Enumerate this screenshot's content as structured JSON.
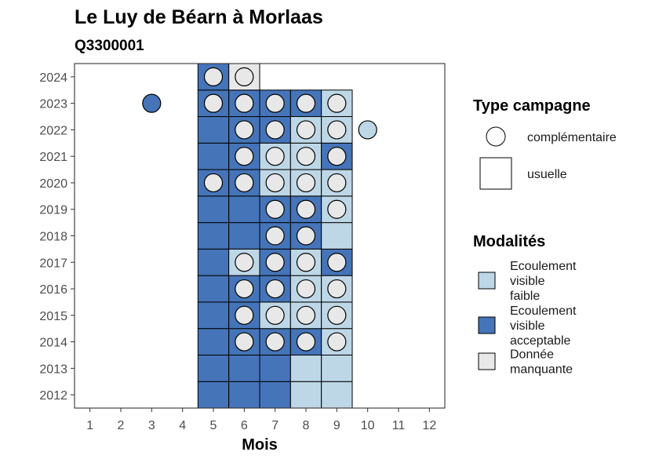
{
  "chart_data": {
    "type": "heatmap",
    "title": "Le Luy de Béarn à Morlaas",
    "subtitle": "Q3300001",
    "xlabel": "Mois",
    "ylabel": "",
    "x_ticks": [
      1,
      2,
      3,
      4,
      5,
      6,
      7,
      8,
      9,
      10,
      11,
      12
    ],
    "y_ticks": [
      2012,
      2013,
      2014,
      2015,
      2016,
      2017,
      2018,
      2019,
      2020,
      2021,
      2022,
      2023,
      2024
    ],
    "xlim": [
      0.5,
      12.5
    ],
    "ylim": [
      2011.5,
      2024.5
    ],
    "colors": {
      "Ecoulement visible faible": "#bdd7e7",
      "Ecoulement visible acceptable": "#4574b8",
      "Donnée manquante": "#e8e8e8"
    },
    "legend_shape": {
      "title": "Type campagne",
      "entries": [
        {
          "label": "complémentaire",
          "shape": "circle"
        },
        {
          "label": "usuelle",
          "shape": "square"
        }
      ]
    },
    "legend_fill": {
      "title": "Modalités",
      "entries": [
        {
          "label": "Ecoulement visible faible",
          "lines": [
            "Ecoulement",
            "visible",
            "faible"
          ],
          "key": "Ecoulement visible faible"
        },
        {
          "label": "Ecoulement visible acceptable",
          "lines": [
            "Ecoulement",
            "visible",
            "acceptable"
          ],
          "key": "Ecoulement visible acceptable"
        },
        {
          "label": "Donnée manquante",
          "lines": [
            "Donnée",
            "manquante"
          ],
          "key": "Donnée manquante"
        }
      ]
    },
    "usuelle": [
      {
        "year": 2012,
        "month": 5,
        "modalite": "Ecoulement visible acceptable"
      },
      {
        "year": 2012,
        "month": 6,
        "modalite": "Ecoulement visible acceptable"
      },
      {
        "year": 2012,
        "month": 7,
        "modalite": "Ecoulement visible acceptable"
      },
      {
        "year": 2012,
        "month": 8,
        "modalite": "Ecoulement visible faible"
      },
      {
        "year": 2012,
        "month": 9,
        "modalite": "Ecoulement visible faible"
      },
      {
        "year": 2013,
        "month": 5,
        "modalite": "Ecoulement visible acceptable"
      },
      {
        "year": 2013,
        "month": 6,
        "modalite": "Ecoulement visible acceptable"
      },
      {
        "year": 2013,
        "month": 7,
        "modalite": "Ecoulement visible acceptable"
      },
      {
        "year": 2013,
        "month": 8,
        "modalite": "Ecoulement visible faible"
      },
      {
        "year": 2013,
        "month": 9,
        "modalite": "Ecoulement visible faible"
      },
      {
        "year": 2014,
        "month": 5,
        "modalite": "Ecoulement visible acceptable"
      },
      {
        "year": 2014,
        "month": 6,
        "modalite": "Ecoulement visible acceptable"
      },
      {
        "year": 2014,
        "month": 7,
        "modalite": "Ecoulement visible acceptable"
      },
      {
        "year": 2014,
        "month": 8,
        "modalite": "Ecoulement visible acceptable"
      },
      {
        "year": 2014,
        "month": 9,
        "modalite": "Ecoulement visible faible"
      },
      {
        "year": 2015,
        "month": 5,
        "modalite": "Ecoulement visible acceptable"
      },
      {
        "year": 2015,
        "month": 6,
        "modalite": "Ecoulement visible acceptable"
      },
      {
        "year": 2015,
        "month": 7,
        "modalite": "Ecoulement visible faible"
      },
      {
        "year": 2015,
        "month": 8,
        "modalite": "Ecoulement visible faible"
      },
      {
        "year": 2015,
        "month": 9,
        "modalite": "Ecoulement visible faible"
      },
      {
        "year": 2016,
        "month": 5,
        "modalite": "Ecoulement visible acceptable"
      },
      {
        "year": 2016,
        "month": 6,
        "modalite": "Ecoulement visible acceptable"
      },
      {
        "year": 2016,
        "month": 7,
        "modalite": "Ecoulement visible acceptable"
      },
      {
        "year": 2016,
        "month": 8,
        "modalite": "Ecoulement visible faible"
      },
      {
        "year": 2016,
        "month": 9,
        "modalite": "Ecoulement visible faible"
      },
      {
        "year": 2017,
        "month": 5,
        "modalite": "Ecoulement visible acceptable"
      },
      {
        "year": 2017,
        "month": 6,
        "modalite": "Ecoulement visible faible"
      },
      {
        "year": 2017,
        "month": 7,
        "modalite": "Ecoulement visible acceptable"
      },
      {
        "year": 2017,
        "month": 8,
        "modalite": "Ecoulement visible faible"
      },
      {
        "year": 2017,
        "month": 9,
        "modalite": "Ecoulement visible acceptable"
      },
      {
        "year": 2018,
        "month": 5,
        "modalite": "Ecoulement visible acceptable"
      },
      {
        "year": 2018,
        "month": 6,
        "modalite": "Ecoulement visible acceptable"
      },
      {
        "year": 2018,
        "month": 7,
        "modalite": "Ecoulement visible acceptable"
      },
      {
        "year": 2018,
        "month": 8,
        "modalite": "Ecoulement visible acceptable"
      },
      {
        "year": 2018,
        "month": 9,
        "modalite": "Ecoulement visible faible"
      },
      {
        "year": 2019,
        "month": 5,
        "modalite": "Ecoulement visible acceptable"
      },
      {
        "year": 2019,
        "month": 6,
        "modalite": "Ecoulement visible acceptable"
      },
      {
        "year": 2019,
        "month": 7,
        "modalite": "Ecoulement visible acceptable"
      },
      {
        "year": 2019,
        "month": 8,
        "modalite": "Ecoulement visible acceptable"
      },
      {
        "year": 2019,
        "month": 9,
        "modalite": "Ecoulement visible faible"
      },
      {
        "year": 2020,
        "month": 5,
        "modalite": "Ecoulement visible acceptable"
      },
      {
        "year": 2020,
        "month": 6,
        "modalite": "Ecoulement visible acceptable"
      },
      {
        "year": 2020,
        "month": 7,
        "modalite": "Ecoulement visible faible"
      },
      {
        "year": 2020,
        "month": 8,
        "modalite": "Ecoulement visible faible"
      },
      {
        "year": 2020,
        "month": 9,
        "modalite": "Ecoulement visible faible"
      },
      {
        "year": 2021,
        "month": 5,
        "modalite": "Ecoulement visible acceptable"
      },
      {
        "year": 2021,
        "month": 6,
        "modalite": "Ecoulement visible acceptable"
      },
      {
        "year": 2021,
        "month": 7,
        "modalite": "Ecoulement visible faible"
      },
      {
        "year": 2021,
        "month": 8,
        "modalite": "Ecoulement visible faible"
      },
      {
        "year": 2021,
        "month": 9,
        "modalite": "Ecoulement visible acceptable"
      },
      {
        "year": 2022,
        "month": 5,
        "modalite": "Ecoulement visible acceptable"
      },
      {
        "year": 2022,
        "month": 6,
        "modalite": "Ecoulement visible acceptable"
      },
      {
        "year": 2022,
        "month": 7,
        "modalite": "Ecoulement visible acceptable"
      },
      {
        "year": 2022,
        "month": 8,
        "modalite": "Ecoulement visible faible"
      },
      {
        "year": 2022,
        "month": 9,
        "modalite": "Ecoulement visible faible"
      },
      {
        "year": 2023,
        "month": 5,
        "modalite": "Ecoulement visible acceptable"
      },
      {
        "year": 2023,
        "month": 6,
        "modalite": "Ecoulement visible acceptable"
      },
      {
        "year": 2023,
        "month": 7,
        "modalite": "Ecoulement visible acceptable"
      },
      {
        "year": 2023,
        "month": 8,
        "modalite": "Ecoulement visible acceptable"
      },
      {
        "year": 2023,
        "month": 9,
        "modalite": "Ecoulement visible faible"
      },
      {
        "year": 2024,
        "month": 5,
        "modalite": "Ecoulement visible acceptable"
      },
      {
        "year": 2024,
        "month": 6,
        "modalite": "Donnée manquante"
      }
    ],
    "complementaire": [
      {
        "year": 2014,
        "month": 6,
        "modalite": "Donnée manquante"
      },
      {
        "year": 2014,
        "month": 7,
        "modalite": "Donnée manquante"
      },
      {
        "year": 2014,
        "month": 8,
        "modalite": "Donnée manquante"
      },
      {
        "year": 2014,
        "month": 9,
        "modalite": "Donnée manquante"
      },
      {
        "year": 2015,
        "month": 6,
        "modalite": "Donnée manquante"
      },
      {
        "year": 2015,
        "month": 7,
        "modalite": "Donnée manquante"
      },
      {
        "year": 2015,
        "month": 8,
        "modalite": "Donnée manquante"
      },
      {
        "year": 2015,
        "month": 9,
        "modalite": "Donnée manquante"
      },
      {
        "year": 2016,
        "month": 6,
        "modalite": "Donnée manquante"
      },
      {
        "year": 2016,
        "month": 7,
        "modalite": "Donnée manquante"
      },
      {
        "year": 2016,
        "month": 8,
        "modalite": "Donnée manquante"
      },
      {
        "year": 2016,
        "month": 9,
        "modalite": "Donnée manquante"
      },
      {
        "year": 2017,
        "month": 6,
        "modalite": "Donnée manquante"
      },
      {
        "year": 2017,
        "month": 7,
        "modalite": "Donnée manquante"
      },
      {
        "year": 2017,
        "month": 8,
        "modalite": "Donnée manquante"
      },
      {
        "year": 2017,
        "month": 9,
        "modalite": "Donnée manquante"
      },
      {
        "year": 2018,
        "month": 7,
        "modalite": "Donnée manquante"
      },
      {
        "year": 2018,
        "month": 8,
        "modalite": "Donnée manquante"
      },
      {
        "year": 2019,
        "month": 7,
        "modalite": "Donnée manquante"
      },
      {
        "year": 2019,
        "month": 8,
        "modalite": "Donnée manquante"
      },
      {
        "year": 2019,
        "month": 9,
        "modalite": "Donnée manquante"
      },
      {
        "year": 2020,
        "month": 5,
        "modalite": "Donnée manquante"
      },
      {
        "year": 2020,
        "month": 6,
        "modalite": "Donnée manquante"
      },
      {
        "year": 2020,
        "month": 7,
        "modalite": "Donnée manquante"
      },
      {
        "year": 2020,
        "month": 8,
        "modalite": "Donnée manquante"
      },
      {
        "year": 2020,
        "month": 9,
        "modalite": "Donnée manquante"
      },
      {
        "year": 2021,
        "month": 6,
        "modalite": "Donnée manquante"
      },
      {
        "year": 2021,
        "month": 7,
        "modalite": "Donnée manquante"
      },
      {
        "year": 2021,
        "month": 8,
        "modalite": "Donnée manquante"
      },
      {
        "year": 2021,
        "month": 9,
        "modalite": "Donnée manquante"
      },
      {
        "year": 2022,
        "month": 6,
        "modalite": "Donnée manquante"
      },
      {
        "year": 2022,
        "month": 7,
        "modalite": "Donnée manquante"
      },
      {
        "year": 2022,
        "month": 8,
        "modalite": "Donnée manquante"
      },
      {
        "year": 2022,
        "month": 9,
        "modalite": "Donnée manquante"
      },
      {
        "year": 2022,
        "month": 10,
        "modalite": "Ecoulement visible faible"
      },
      {
        "year": 2023,
        "month": 3,
        "modalite": "Ecoulement visible acceptable"
      },
      {
        "year": 2023,
        "month": 5,
        "modalite": "Donnée manquante"
      },
      {
        "year": 2023,
        "month": 6,
        "modalite": "Donnée manquante"
      },
      {
        "year": 2023,
        "month": 7,
        "modalite": "Donnée manquante"
      },
      {
        "year": 2023,
        "month": 8,
        "modalite": "Donnée manquante"
      },
      {
        "year": 2023,
        "month": 9,
        "modalite": "Donnée manquante"
      },
      {
        "year": 2024,
        "month": 5,
        "modalite": "Donnée manquante"
      },
      {
        "year": 2024,
        "month": 6,
        "modalite": "Donnée manquante"
      }
    ]
  }
}
